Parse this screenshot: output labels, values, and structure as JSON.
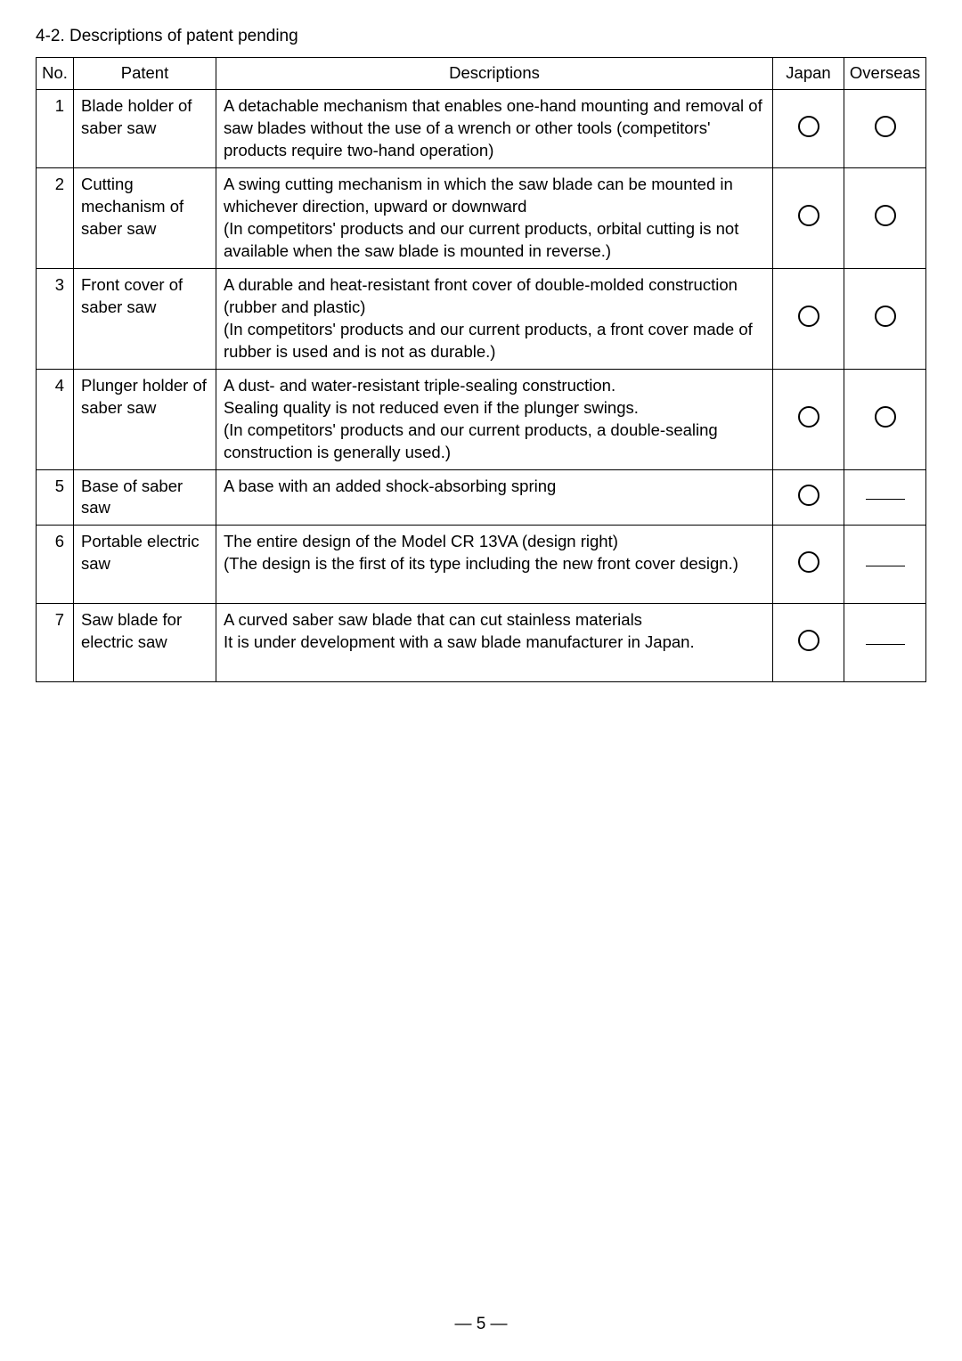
{
  "section_title": "4-2. Descriptions of patent pending",
  "headers": {
    "no": "No.",
    "patent": "Patent",
    "descriptions": "Descriptions",
    "japan": "Japan",
    "overseas": "Overseas"
  },
  "rows": [
    {
      "no": "1",
      "patent": "Blade holder of saber saw",
      "desc": "A detachable mechanism that enables one-hand mounting and removal of saw blades without the use of a wrench or other tools (competitors' products require two-hand operation)",
      "japan": "circle",
      "overseas": "circle"
    },
    {
      "no": "2",
      "patent": "Cutting mechanism of saber saw",
      "desc": "A swing cutting mechanism in which the saw blade can be mounted in whichever direction, upward or downward\n(In competitors' products and our current products, orbital cutting is not available when the saw blade is mounted in reverse.)",
      "japan": "circle",
      "overseas": "circle"
    },
    {
      "no": "3",
      "patent": "Front cover of saber saw",
      "desc": "A durable and heat-resistant front cover of double-molded construction (rubber and plastic)\n(In competitors' products and our current products, a front cover made of rubber is used and is not as durable.)",
      "japan": "circle",
      "overseas": "circle"
    },
    {
      "no": "4",
      "patent": "Plunger holder of saber saw",
      "desc": "A dust- and water-resistant triple-sealing construction.\nSealing quality is not reduced even if the plunger swings.\n(In competitors' products and our current products, a double-sealing construction is generally used.)",
      "japan": "circle",
      "overseas": "circle"
    },
    {
      "no": "5",
      "patent": "Base of saber saw",
      "desc": "A base with an added shock-absorbing spring",
      "japan": "circle",
      "overseas": "dash"
    },
    {
      "no": "6",
      "patent": "Portable electric saw",
      "desc": "The entire design of the Model CR 13VA (design right)\n(The design is the first of its type including the new front cover design.)",
      "japan": "circle",
      "overseas": "dash"
    },
    {
      "no": "7",
      "patent": "Saw blade for electric saw",
      "desc": "A curved saber saw blade that can cut stainless materials\nIt is under development with a saw blade manufacturer in Japan.",
      "japan": "circle",
      "overseas": "dash"
    }
  ],
  "page_number": "— 5 —",
  "row_min_heights": [
    "82px",
    "108px",
    "108px",
    "108px",
    "60px",
    "88px",
    "88px"
  ]
}
